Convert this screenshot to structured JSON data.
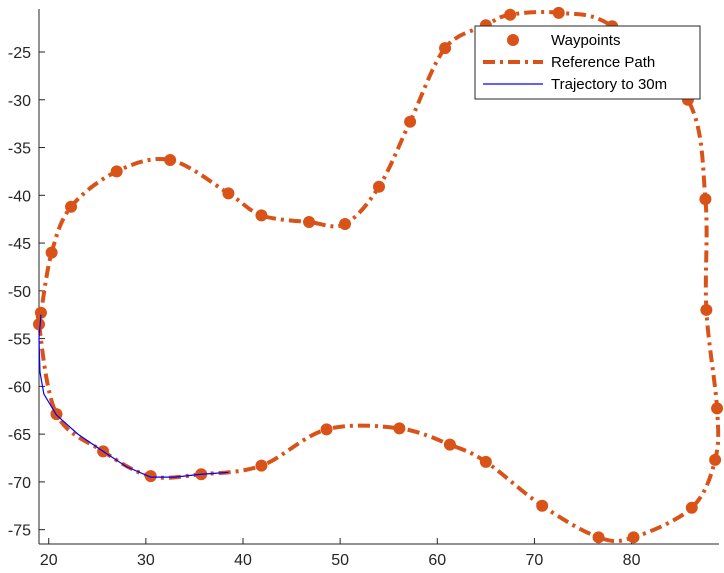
{
  "chart_data": {
    "type": "line",
    "title": "",
    "xlabel": "",
    "ylabel": "",
    "xlim": [
      19,
      89
    ],
    "ylim": [
      -76.5,
      -20.5
    ],
    "xticks": [
      20,
      30,
      40,
      50,
      60,
      70,
      80
    ],
    "yticks": [
      -75,
      -70,
      -65,
      -60,
      -55,
      -50,
      -45,
      -40,
      -35,
      -30,
      -25
    ],
    "grid": false,
    "legend": {
      "placement": "top-right",
      "entries": [
        "Waypoints",
        "Reference Path",
        "Trajectory to 30m"
      ]
    },
    "colors": {
      "waypoints": "#D95319",
      "reference": "#D95319",
      "trajectory": "#0000FF"
    },
    "series": [
      {
        "name": "Waypoints",
        "style": "markers",
        "x": [
          19.0,
          19.2,
          20.3,
          22.3,
          27.0,
          32.5,
          38.5,
          41.9,
          46.8,
          50.5,
          54.0,
          57.2,
          60.8,
          65.0,
          67.5,
          72.5,
          78.0,
          85.8,
          87.6,
          87.7,
          88.8,
          88.6,
          86.2,
          80.2,
          76.6,
          70.8,
          65.0,
          61.3,
          56.1,
          48.6,
          41.9,
          35.7,
          30.5,
          25.6,
          20.8
        ],
        "y": [
          -53.5,
          -52.3,
          -46.0,
          -41.2,
          -37.5,
          -36.3,
          -39.8,
          -42.1,
          -42.8,
          -43.0,
          -39.1,
          -32.3,
          -24.6,
          -22.2,
          -21.1,
          -20.9,
          -22.3,
          -30.0,
          -40.4,
          -52.0,
          -62.3,
          -67.7,
          -72.7,
          -75.8,
          -75.8,
          -72.5,
          -67.9,
          -66.1,
          -64.4,
          -64.5,
          -68.3,
          -69.2,
          -69.4,
          -66.8,
          -62.9
        ]
      },
      {
        "name": "Reference Path",
        "style": "dash-dot",
        "closed": true
      },
      {
        "name": "Trajectory to 30m",
        "style": "solid",
        "x": [
          19.2,
          19.0,
          19.1,
          19.5,
          20.8,
          23.0,
          25.6,
          28.0,
          30.5,
          33.0,
          35.7,
          38.5
        ],
        "y": [
          -52.5,
          -55.0,
          -58.5,
          -60.8,
          -63.0,
          -65.0,
          -66.8,
          -68.4,
          -69.5,
          -69.5,
          -69.2,
          -69.0
        ]
      }
    ]
  }
}
